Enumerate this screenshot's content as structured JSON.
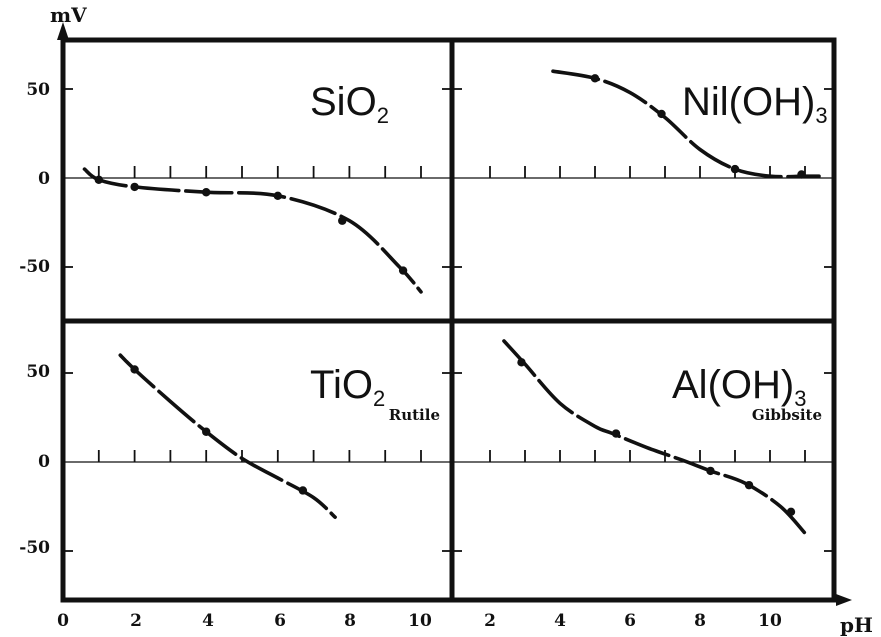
{
  "chart_data": [
    {
      "type": "line",
      "panel": "top-left",
      "title": "SiO",
      "title_sub": "2",
      "subtitle": "",
      "xlim": [
        0,
        10.5
      ],
      "ylim": [
        -80,
        80
      ],
      "dashed": true,
      "x": [
        0.6,
        1.0,
        2.0,
        4.0,
        6.0,
        8.0,
        9.4,
        10.0
      ],
      "y": [
        5,
        -1,
        -5,
        -8,
        -10,
        -24,
        -50,
        -64
      ],
      "points": [
        [
          1.0,
          -1
        ],
        [
          2.0,
          -5
        ],
        [
          4.0,
          -8
        ],
        [
          6.0,
          -10
        ],
        [
          7.8,
          -24
        ],
        [
          9.5,
          -52
        ]
      ]
    },
    {
      "type": "line",
      "panel": "top-right",
      "title": "Nil(OH)",
      "title_sub": "3",
      "subtitle": "",
      "xlim": [
        0,
        11.3
      ],
      "ylim": [
        -80,
        80
      ],
      "dashed": true,
      "x": [
        3.8,
        5.0,
        6.0,
        7.0,
        8.0,
        9.0,
        10.0,
        11.0,
        11.4
      ],
      "y": [
        60,
        56,
        48,
        34,
        16,
        5,
        1,
        1,
        1
      ],
      "points": [
        [
          5.0,
          56
        ],
        [
          6.9,
          36
        ],
        [
          9.0,
          5
        ],
        [
          10.9,
          2
        ]
      ]
    },
    {
      "type": "line",
      "panel": "bottom-left",
      "title": "TiO",
      "title_sub": "2",
      "subtitle": "Rutile",
      "xlim": [
        0,
        10.5
      ],
      "ylim": [
        -80,
        80
      ],
      "dashed": true,
      "x": [
        1.6,
        2.0,
        3.0,
        4.0,
        5.0,
        6.0,
        7.0,
        7.6
      ],
      "y": [
        60,
        52,
        34,
        17,
        2,
        -9,
        -20,
        -31
      ],
      "points": [
        [
          2.0,
          52
        ],
        [
          4.0,
          17
        ],
        [
          6.7,
          -16
        ]
      ]
    },
    {
      "type": "line",
      "panel": "bottom-right",
      "title": "Al(OH)",
      "title_sub": "3",
      "subtitle": "Gibbsite",
      "xlim": [
        0,
        11.3
      ],
      "ylim": [
        -80,
        80
      ],
      "dashed": true,
      "x": [
        2.4,
        3.0,
        4.0,
        5.0,
        5.5,
        6.5,
        7.5,
        8.3,
        9.3,
        10.3,
        11.0
      ],
      "y": [
        68,
        55,
        33,
        20,
        16,
        8,
        1,
        -5,
        -12,
        -25,
        -40
      ],
      "points": [
        [
          2.9,
          56
        ],
        [
          5.6,
          16
        ],
        [
          8.3,
          -5
        ],
        [
          9.4,
          -13
        ],
        [
          10.6,
          -28
        ]
      ]
    }
  ],
  "axes": {
    "y_label": "mV",
    "x_label": "pH",
    "y_ticks_top": [
      "50",
      "0",
      "-50"
    ],
    "y_ticks_bottom": [
      "50",
      "0",
      "-50"
    ],
    "x_ticks_left": [
      "0",
      "2",
      "4",
      "6",
      "8",
      "10"
    ],
    "x_ticks_right": [
      "2",
      "4",
      "6",
      "8",
      "10"
    ]
  },
  "colors": {
    "ink": "#111111",
    "paper": "#ffffff"
  }
}
